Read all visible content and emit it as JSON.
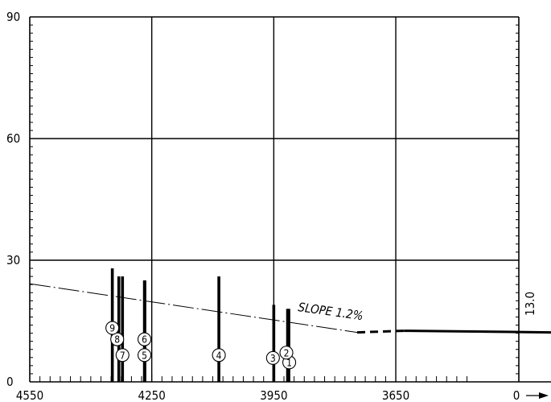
{
  "chart_data": {
    "type": "scatter",
    "title": "",
    "xlabel": "",
    "ylabel": "",
    "x_reversed": true,
    "xlim": [
      4550,
      3550
    ],
    "ylim": [
      0,
      90
    ],
    "x_ticks": [
      {
        "value": 4550,
        "label": "4550"
      },
      {
        "value": 4250,
        "label": "4250"
      },
      {
        "value": 3950,
        "label": "3950"
      },
      {
        "value": 3650,
        "label": "3650"
      }
    ],
    "x_end_label": "0",
    "y_ticks": [
      {
        "value": 0,
        "label": "0"
      },
      {
        "value": 30,
        "label": "30"
      },
      {
        "value": 60,
        "label": "60"
      },
      {
        "value": 90,
        "label": "90"
      }
    ],
    "grid": true,
    "slope_line": {
      "label": "SLOPE 1.2%",
      "points": [
        [
          4550,
          24.2
        ],
        [
          3745,
          12.2
        ]
      ]
    },
    "dashed_extension": {
      "points": [
        [
          3745,
          12.2
        ],
        [
          3630,
          12.6
        ]
      ]
    },
    "end_segment": {
      "points": [
        [
          3630,
          12.6
        ],
        [
          3550,
          12.2
        ]
      ],
      "label": "13.0"
    },
    "bars": [
      {
        "id": "1",
        "x": 3913,
        "bottom": 0,
        "top": 18
      },
      {
        "id": "2",
        "x": 3916,
        "bottom": 0,
        "top": 18
      },
      {
        "id": "3",
        "x": 3950,
        "bottom": 0,
        "top": 19
      },
      {
        "id": "4",
        "x": 4085,
        "bottom": 0,
        "top": 26
      },
      {
        "id": "5",
        "x": 4267,
        "bottom": 0,
        "top": 25
      },
      {
        "id": "6",
        "x": 4268,
        "bottom": 0,
        "top": 25
      },
      {
        "id": "7",
        "x": 4322,
        "bottom": 0,
        "top": 26
      },
      {
        "id": "8",
        "x": 4331,
        "bottom": 0,
        "top": 26
      },
      {
        "id": "9",
        "x": 4347,
        "bottom": 0,
        "top": 28
      }
    ],
    "markers": [
      {
        "label": "1",
        "x": 3912,
        "y": 4.8
      },
      {
        "label": "2",
        "x": 3919,
        "y": 7.2
      },
      {
        "label": "3",
        "x": 3952,
        "y": 5.9
      },
      {
        "label": "4",
        "x": 4085,
        "y": 6.6
      },
      {
        "label": "5",
        "x": 4268,
        "y": 6.6
      },
      {
        "label": "6",
        "x": 4268,
        "y": 10.5
      },
      {
        "label": "7",
        "x": 4322,
        "y": 6.6
      },
      {
        "label": "8",
        "x": 4335,
        "y": 10.5
      },
      {
        "label": "9",
        "x": 4347,
        "y": 13.3
      }
    ]
  }
}
